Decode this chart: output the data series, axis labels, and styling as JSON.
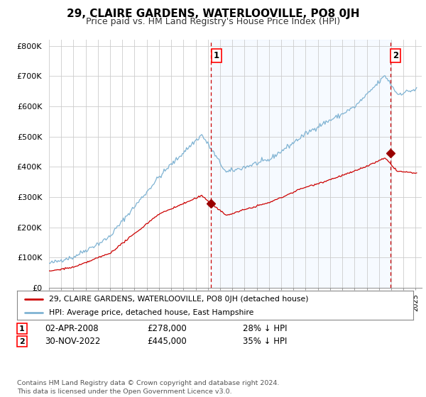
{
  "title": "29, CLAIRE GARDENS, WATERLOOVILLE, PO8 0JH",
  "subtitle": "Price paid vs. HM Land Registry's House Price Index (HPI)",
  "title_fontsize": 11,
  "subtitle_fontsize": 9,
  "ylabel_ticks": [
    "£0",
    "£100K",
    "£200K",
    "£300K",
    "£400K",
    "£500K",
    "£600K",
    "£700K",
    "£800K"
  ],
  "ytick_values": [
    0,
    100000,
    200000,
    300000,
    400000,
    500000,
    600000,
    700000,
    800000
  ],
  "ylim": [
    0,
    820000
  ],
  "xlim_start": 1995.0,
  "xlim_end": 2025.5,
  "sale1_year": 2008.25,
  "sale1_price": 278000,
  "sale1_label": "1",
  "sale1_date": "02-APR-2008",
  "sale1_price_str": "£278,000",
  "sale1_hpi": "28% ↓ HPI",
  "sale2_year": 2022.917,
  "sale2_price": 445000,
  "sale2_label": "2",
  "sale2_date": "30-NOV-2022",
  "sale2_price_str": "£445,000",
  "sale2_hpi": "35% ↓ HPI",
  "line_color_red": "#cc0000",
  "line_color_blue": "#7fb3d3",
  "shade_color": "#ddeeff",
  "marker_color_red": "#990000",
  "vline_color": "#cc0000",
  "grid_color": "#cccccc",
  "bg_color": "#ffffff",
  "legend_label_red": "29, CLAIRE GARDENS, WATERLOOVILLE, PO8 0JH (detached house)",
  "legend_label_blue": "HPI: Average price, detached house, East Hampshire",
  "footnote": "Contains HM Land Registry data © Crown copyright and database right 2024.\nThis data is licensed under the Open Government Licence v3.0."
}
